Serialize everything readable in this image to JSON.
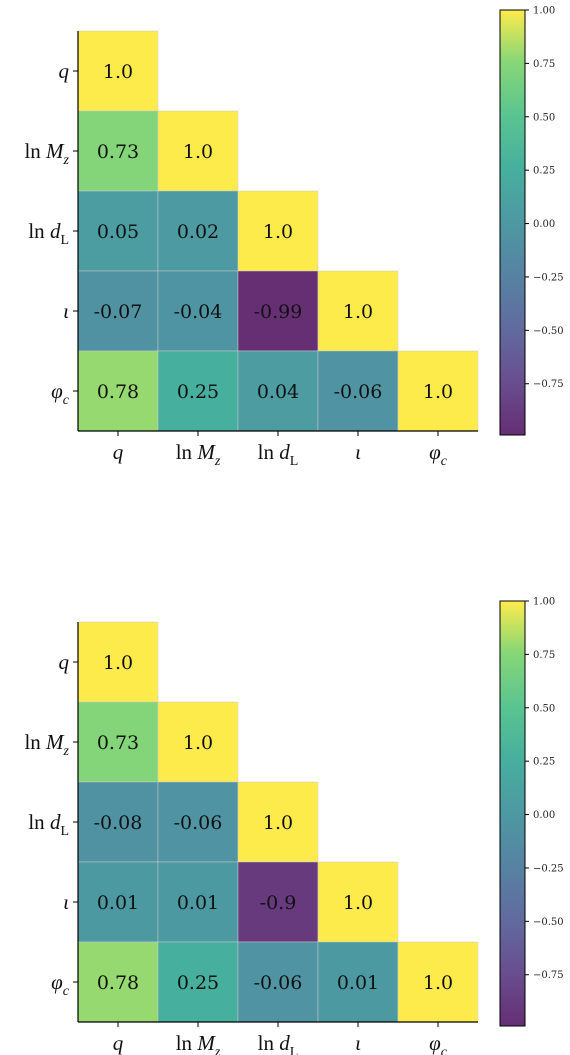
{
  "chart_data": [
    {
      "type": "heatmap",
      "title": "",
      "labels": [
        {
          "base": "q",
          "sub": ""
        },
        {
          "pre": "ln ",
          "base": "M",
          "sub": "z"
        },
        {
          "pre": "ln ",
          "base": "d",
          "sub": "L"
        },
        {
          "base": "ι",
          "sub": ""
        },
        {
          "base": "φ",
          "sub": "c"
        }
      ],
      "matrix": [
        [
          "1.0",
          null,
          null,
          null,
          null
        ],
        [
          "0.73",
          "1.0",
          null,
          null,
          null
        ],
        [
          "0.05",
          "0.02",
          "1.0",
          null,
          null
        ],
        [
          "-0.07",
          "-0.04",
          "-0.99",
          "1.0",
          null
        ],
        [
          "0.78",
          "0.25",
          "0.04",
          "-0.06",
          "1.0"
        ]
      ],
      "colorbar": {
        "range": [
          -0.99,
          1.0
        ],
        "ticks": [
          "1.00",
          "0.75",
          "0.50",
          "0.25",
          "0.00",
          "−0.25",
          "−0.50",
          "−0.75"
        ],
        "colormap": "viridis"
      }
    },
    {
      "type": "heatmap",
      "title": "",
      "labels": [
        {
          "base": "q",
          "sub": ""
        },
        {
          "pre": "ln ",
          "base": "M",
          "sub": "z"
        },
        {
          "pre": "ln ",
          "base": "d",
          "sub": "L"
        },
        {
          "base": "ι",
          "sub": ""
        },
        {
          "base": "φ",
          "sub": "c"
        }
      ],
      "matrix": [
        [
          "1.0",
          null,
          null,
          null,
          null
        ],
        [
          "0.73",
          "1.0",
          null,
          null,
          null
        ],
        [
          "-0.08",
          "-0.06",
          "1.0",
          null,
          null
        ],
        [
          "0.01",
          "0.01",
          "-0.9",
          "1.0",
          null
        ],
        [
          "0.78",
          "0.25",
          "-0.06",
          "0.01",
          "1.0"
        ]
      ],
      "colorbar": {
        "range": [
          -0.99,
          1.0
        ],
        "ticks": [
          "1.00",
          "0.75",
          "0.50",
          "0.25",
          "0.00",
          "−0.25",
          "−0.50",
          "−0.75"
        ],
        "colormap": "viridis"
      }
    }
  ]
}
